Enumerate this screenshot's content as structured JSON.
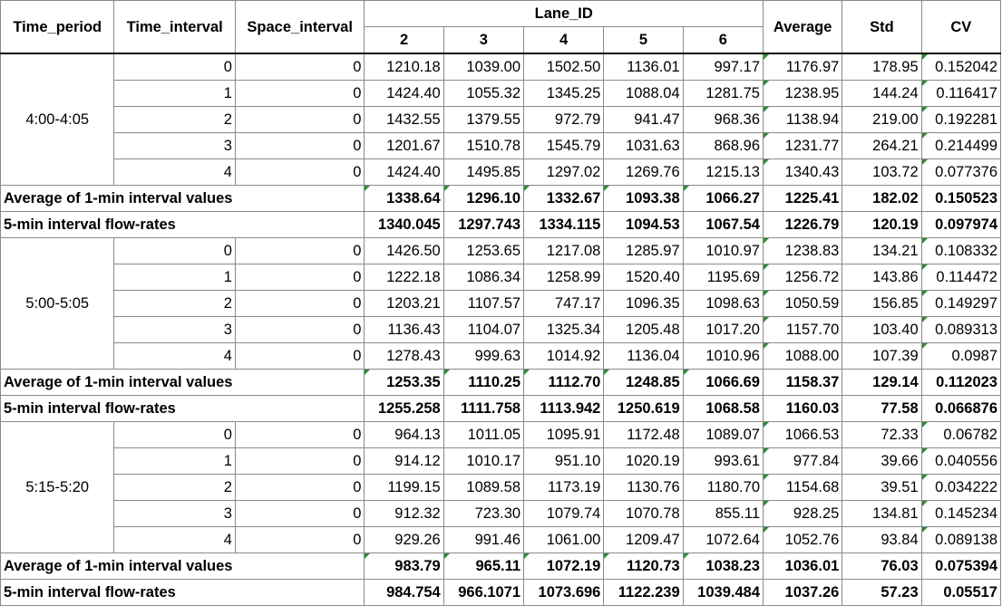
{
  "headers": {
    "time_period": "Time_period",
    "time_interval": "Time_interval",
    "space_interval": "Space_interval",
    "lane_id": "Lane_ID",
    "lanes": [
      "2",
      "3",
      "4",
      "5",
      "6"
    ],
    "average": "Average",
    "std": "Std",
    "cv": "CV"
  },
  "groups": [
    {
      "period": "4:00-4:05",
      "rows": [
        {
          "ti": "0",
          "si": "0",
          "vals": [
            "1210.18",
            "1039.00",
            "1502.50",
            "1136.01",
            "997.17"
          ],
          "avg": "1176.97",
          "std": "178.95",
          "cv": "0.152042"
        },
        {
          "ti": "1",
          "si": "0",
          "vals": [
            "1424.40",
            "1055.32",
            "1345.25",
            "1088.04",
            "1281.75"
          ],
          "avg": "1238.95",
          "std": "144.24",
          "cv": "0.116417"
        },
        {
          "ti": "2",
          "si": "0",
          "vals": [
            "1432.55",
            "1379.55",
            "972.79",
            "941.47",
            "968.36"
          ],
          "avg": "1138.94",
          "std": "219.00",
          "cv": "0.192281"
        },
        {
          "ti": "3",
          "si": "0",
          "vals": [
            "1201.67",
            "1510.78",
            "1545.79",
            "1031.63",
            "868.96"
          ],
          "avg": "1231.77",
          "std": "264.21",
          "cv": "0.214499"
        },
        {
          "ti": "4",
          "si": "0",
          "vals": [
            "1424.40",
            "1495.85",
            "1297.02",
            "1269.76",
            "1215.13"
          ],
          "avg": "1340.43",
          "std": "103.72",
          "cv": "0.077376"
        }
      ],
      "average_row": {
        "label": "Average of 1-min interval values",
        "vals": [
          "1338.64",
          "1296.10",
          "1332.67",
          "1093.38",
          "1066.27"
        ],
        "avg": "1225.41",
        "std": "182.02",
        "cv": "0.150523"
      },
      "flow_row": {
        "label": "5-min interval flow-rates",
        "vals": [
          "1340.045",
          "1297.743",
          "1334.115",
          "1094.53",
          "1067.54"
        ],
        "avg": "1226.79",
        "std": "120.19",
        "cv": "0.097974"
      }
    },
    {
      "period": "5:00-5:05",
      "rows": [
        {
          "ti": "0",
          "si": "0",
          "vals": [
            "1426.50",
            "1253.65",
            "1217.08",
            "1285.97",
            "1010.97"
          ],
          "avg": "1238.83",
          "std": "134.21",
          "cv": "0.108332"
        },
        {
          "ti": "1",
          "si": "0",
          "vals": [
            "1222.18",
            "1086.34",
            "1258.99",
            "1520.40",
            "1195.69"
          ],
          "avg": "1256.72",
          "std": "143.86",
          "cv": "0.114472"
        },
        {
          "ti": "2",
          "si": "0",
          "vals": [
            "1203.21",
            "1107.57",
            "747.17",
            "1096.35",
            "1098.63"
          ],
          "avg": "1050.59",
          "std": "156.85",
          "cv": "0.149297"
        },
        {
          "ti": "3",
          "si": "0",
          "vals": [
            "1136.43",
            "1104.07",
            "1325.34",
            "1205.48",
            "1017.20"
          ],
          "avg": "1157.70",
          "std": "103.40",
          "cv": "0.089313"
        },
        {
          "ti": "4",
          "si": "0",
          "vals": [
            "1278.43",
            "999.63",
            "1014.92",
            "1136.04",
            "1010.96"
          ],
          "avg": "1088.00",
          "std": "107.39",
          "cv": "0.0987"
        }
      ],
      "average_row": {
        "label": "Average of 1-min interval values",
        "vals": [
          "1253.35",
          "1110.25",
          "1112.70",
          "1248.85",
          "1066.69"
        ],
        "avg": "1158.37",
        "std": "129.14",
        "cv": "0.112023"
      },
      "flow_row": {
        "label": "5-min interval flow-rates",
        "vals": [
          "1255.258",
          "1111.758",
          "1113.942",
          "1250.619",
          "1068.58"
        ],
        "avg": "1160.03",
        "std": "77.58",
        "cv": "0.066876"
      }
    },
    {
      "period": "5:15-5:20",
      "rows": [
        {
          "ti": "0",
          "si": "0",
          "vals": [
            "964.13",
            "1011.05",
            "1095.91",
            "1172.48",
            "1089.07"
          ],
          "avg": "1066.53",
          "std": "72.33",
          "cv": "0.06782"
        },
        {
          "ti": "1",
          "si": "0",
          "vals": [
            "914.12",
            "1010.17",
            "951.10",
            "1020.19",
            "993.61"
          ],
          "avg": "977.84",
          "std": "39.66",
          "cv": "0.040556"
        },
        {
          "ti": "2",
          "si": "0",
          "vals": [
            "1199.15",
            "1089.58",
            "1173.19",
            "1130.76",
            "1180.70"
          ],
          "avg": "1154.68",
          "std": "39.51",
          "cv": "0.034222"
        },
        {
          "ti": "3",
          "si": "0",
          "vals": [
            "912.32",
            "723.30",
            "1079.74",
            "1070.78",
            "855.11"
          ],
          "avg": "928.25",
          "std": "134.81",
          "cv": "0.145234"
        },
        {
          "ti": "4",
          "si": "0",
          "vals": [
            "929.26",
            "991.46",
            "1061.00",
            "1209.47",
            "1072.64"
          ],
          "avg": "1052.76",
          "std": "93.84",
          "cv": "0.089138"
        }
      ],
      "average_row": {
        "label": "Average of 1-min interval values",
        "vals": [
          "983.79",
          "965.11",
          "1072.19",
          "1120.73",
          "1038.23"
        ],
        "avg": "1036.01",
        "std": "76.03",
        "cv": "0.075394"
      },
      "flow_row": {
        "label": "5-min interval flow-rates",
        "vals": [
          "984.754",
          "966.1071",
          "1073.696",
          "1122.239",
          "1039.484"
        ],
        "avg": "1037.26",
        "std": "57.23",
        "cv": "0.05517"
      }
    }
  ]
}
